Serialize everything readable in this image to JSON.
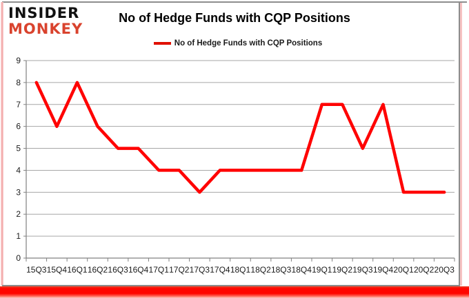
{
  "logo": {
    "line1": "INSIDER",
    "line2": "MONKEY"
  },
  "header": {
    "title": "No of Hedge Funds with CQP Positions"
  },
  "legend": {
    "label": "No of Hedge Funds with CQP Positions"
  },
  "colors": {
    "series_red": "#ff0000",
    "logo_red": "#d9432e",
    "gridline": "#a6a6a6",
    "axis": "#808080",
    "label_text": "#1a1a1a",
    "bottom_bar_red": "#ff0600",
    "frame_gray": "#8c8c8c"
  },
  "chart_data": {
    "type": "line",
    "title": "No of Hedge Funds with CQP Positions",
    "series": [
      {
        "name": "No of Hedge Funds with CQP Positions",
        "color": "#ff0000",
        "values": [
          8,
          6,
          8,
          6,
          5,
          5,
          4,
          4,
          3,
          4,
          4,
          4,
          4,
          4,
          7,
          7,
          5,
          7,
          3,
          3,
          3
        ]
      }
    ],
    "categories": [
      "15Q3",
      "15Q4",
      "16Q1",
      "16Q2",
      "16Q3",
      "16Q4",
      "17Q1",
      "17Q2",
      "17Q3",
      "17Q4",
      "18Q1",
      "18Q2",
      "18Q3",
      "18Q4",
      "19Q1",
      "19Q2",
      "19Q3",
      "19Q4",
      "20Q1",
      "20Q2",
      "20Q3"
    ],
    "xlabel": "",
    "ylabel": "",
    "ylim": [
      0,
      9
    ],
    "ytick_step": 1,
    "grid": true,
    "legend_position": "top-center"
  }
}
